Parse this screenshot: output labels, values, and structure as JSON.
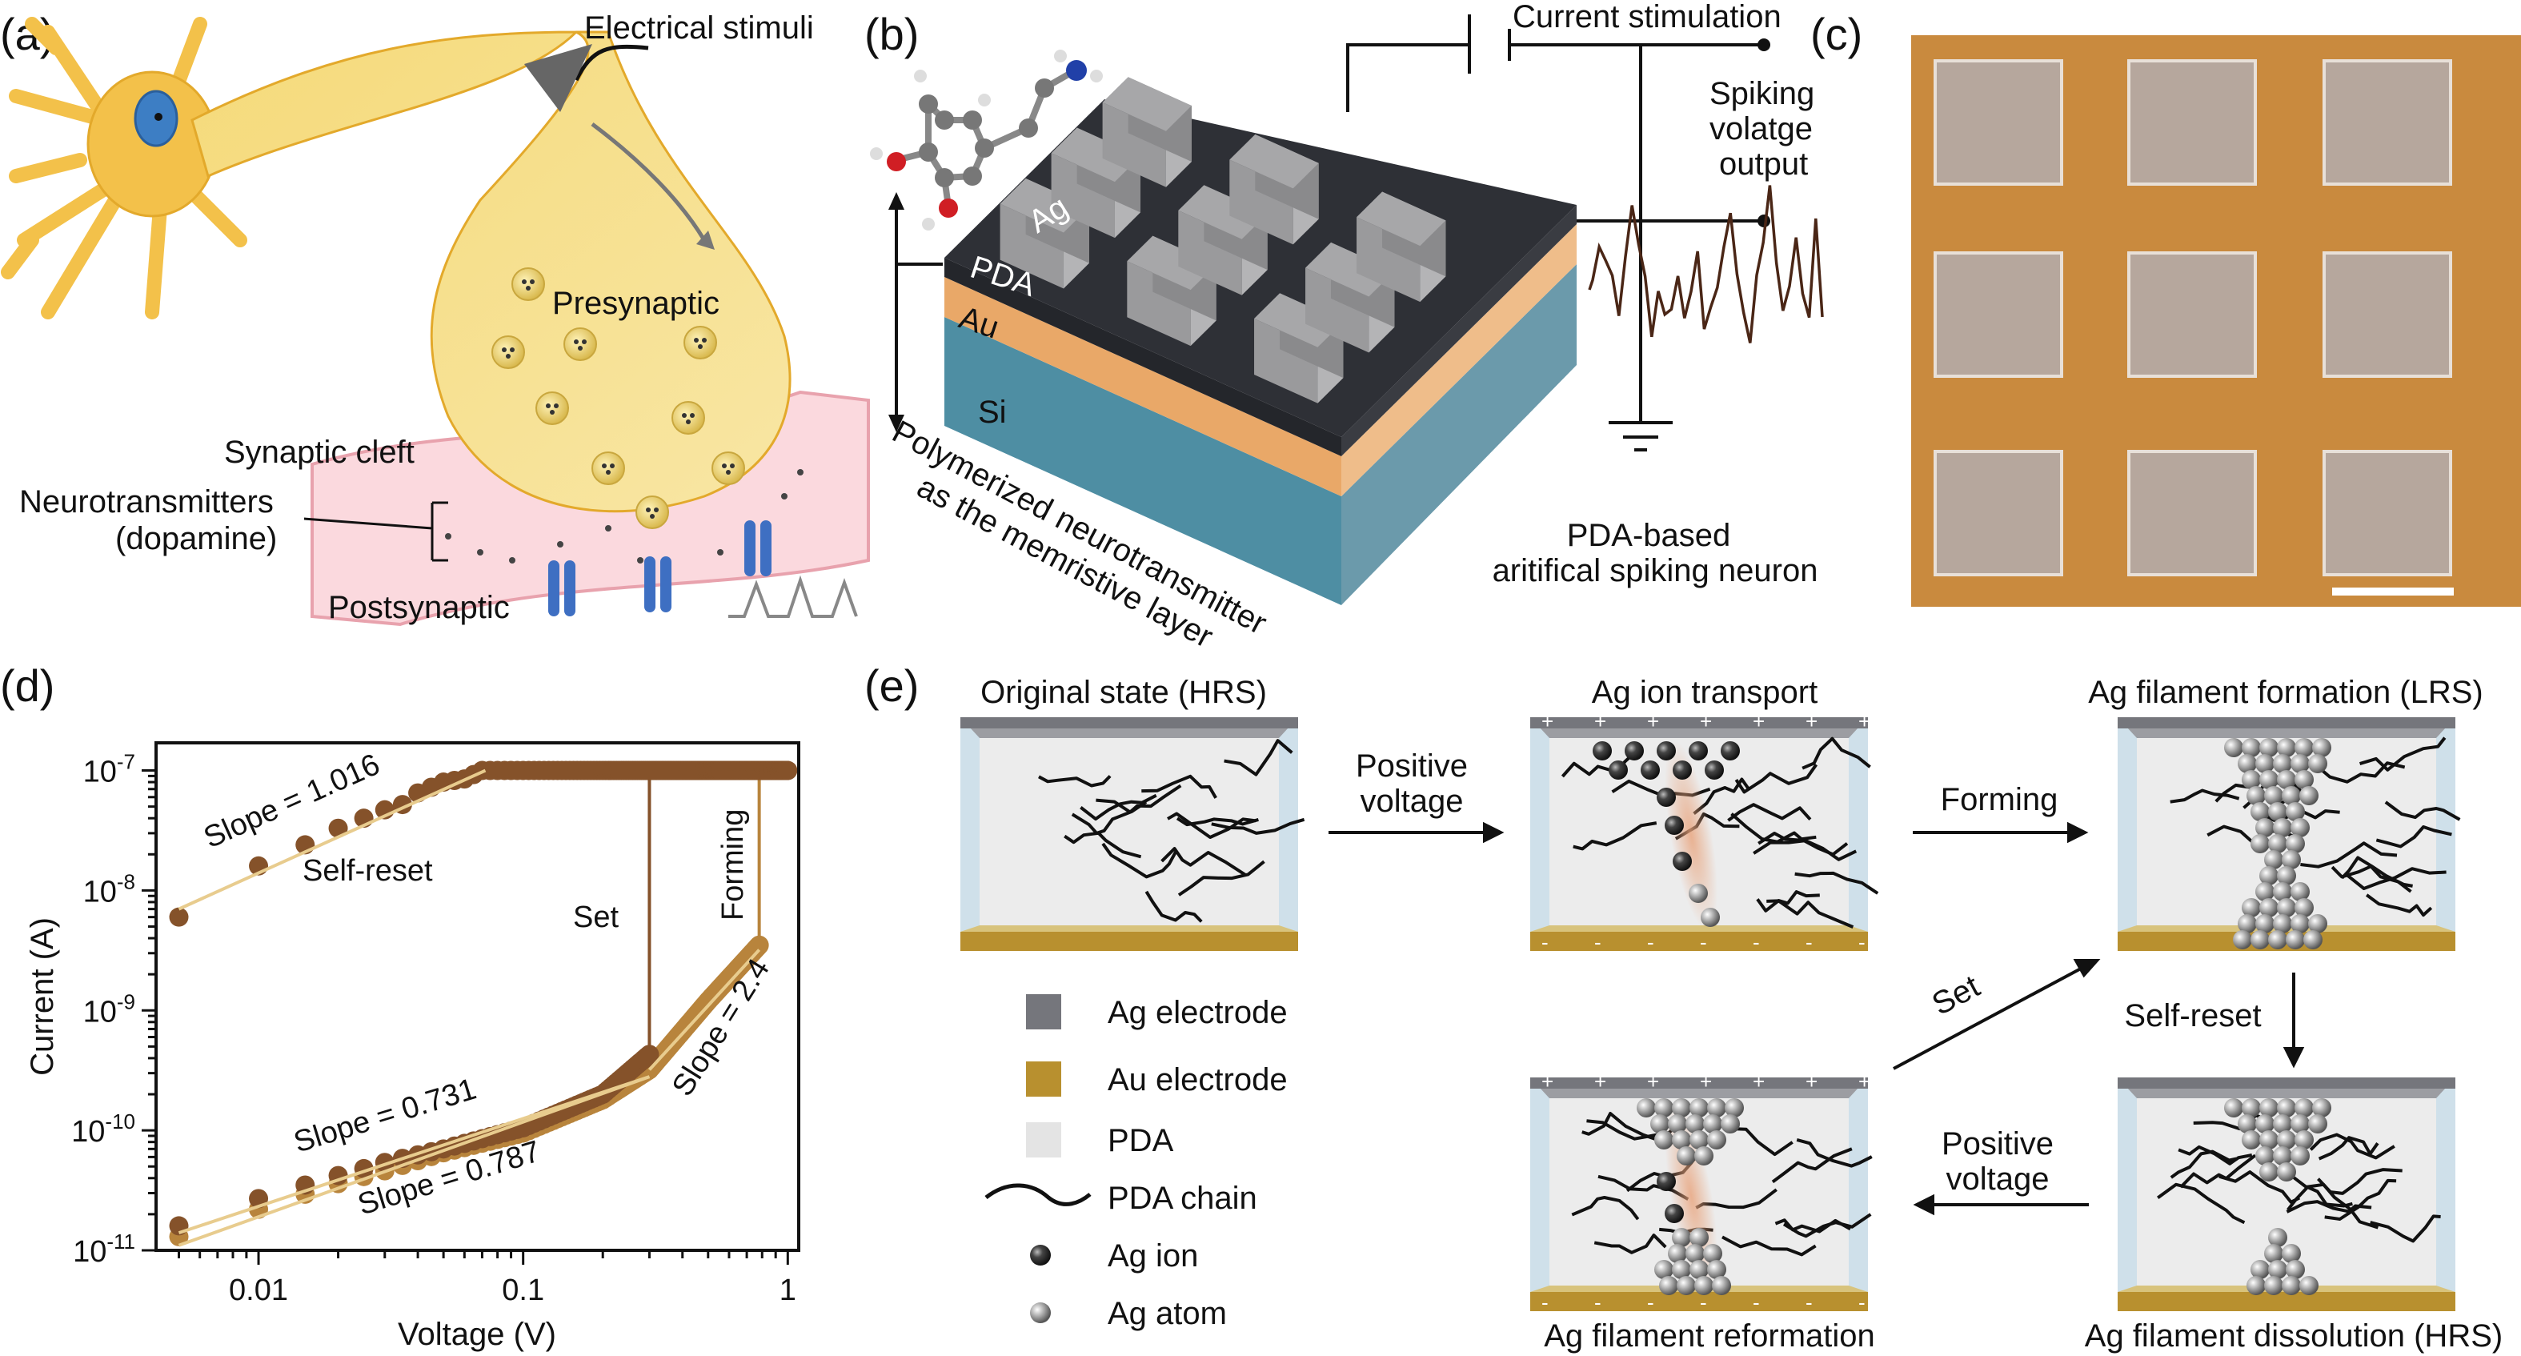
{
  "panels": {
    "a": {
      "label": "(a)",
      "electrical_stimuli": "Electrical stimuli",
      "presynaptic": "Presynaptic",
      "synaptic_cleft": "Synaptic cleft",
      "neurotransmitters": "Neurotransmitters",
      "dopamine": "(dopamine)",
      "postsynaptic": "Postsynaptic"
    },
    "b": {
      "label": "(b)",
      "current_stimulation": "Current stimulation",
      "spiking_lines": [
        "Spiking",
        "volatge",
        "output"
      ],
      "layer_ag": "Ag",
      "layer_pda": "PDA",
      "layer_au": "Au",
      "layer_si": "Si",
      "caption_line1": "Polymerized neurotransmitter",
      "caption_line2": "as the memristive layer",
      "neuron_line1": "PDA-based",
      "neuron_line2": "aritifical spiking neuron",
      "colors": {
        "pda": "#2e3036",
        "au": "#e9a868",
        "si": "#4e8ea3",
        "ag": "#a7a7a9"
      }
    },
    "c": {
      "label": "(c)",
      "colors": {
        "substrate": "#c98a3e",
        "pad": "#b6a79d"
      }
    },
    "e": {
      "label": "(e)",
      "states": {
        "original": "Original state (HRS)",
        "transport": "Ag ion transport",
        "formation": "Ag filament formation (LRS)",
        "dissolution": "Ag filament dissolution (HRS)",
        "reformation": "Ag filament reformation"
      },
      "arrows": {
        "positive1": [
          "Positive",
          "voltage"
        ],
        "forming": "Forming",
        "self_reset": "Self-reset",
        "positive2": [
          "Positive",
          "voltage"
        ],
        "set": "Set"
      },
      "legend": [
        {
          "icon": "ag-electrode-swatch",
          "label": "Ag electrode",
          "color": "#75767c"
        },
        {
          "icon": "au-electrode-swatch",
          "label": "Au electrode",
          "color": "#b8902f"
        },
        {
          "icon": "pda-swatch",
          "label": "PDA",
          "color": "#e4e4e4"
        },
        {
          "icon": "pda-chain-line",
          "label": "PDA chain"
        },
        {
          "icon": "ag-ion-sphere",
          "label": "Ag ion",
          "color": "#333333"
        },
        {
          "icon": "ag-atom-sphere",
          "label": "Ag atom",
          "color": "#9a9a9a"
        }
      ],
      "plus": "+",
      "minus": "-"
    }
  },
  "chart_data": {
    "panel_label": "(d)",
    "type": "scatter",
    "xlabel": "Voltage (V)",
    "ylabel": "Current (A)",
    "x_scale": "log",
    "y_scale": "log",
    "xlim": [
      0.0041,
      1.1
    ],
    "ylim": [
      1e-11,
      1.7e-07
    ],
    "x_ticks": [
      {
        "value": 0.01,
        "label": "0.01"
      },
      {
        "value": 0.1,
        "label": "0.1"
      },
      {
        "value": 1,
        "label": "1"
      }
    ],
    "y_ticks": [
      {
        "value": 1e-07,
        "base": "10",
        "exp": "-7"
      },
      {
        "value": 1e-08,
        "base": "10",
        "exp": "-8"
      },
      {
        "value": 1e-09,
        "base": "10",
        "exp": "-9"
      },
      {
        "value": 1e-10,
        "base": "10",
        "exp": "-10"
      },
      {
        "value": 1e-11,
        "base": "10",
        "exp": "-11"
      }
    ],
    "grid": false,
    "compliance_current": 1e-07,
    "series": [
      {
        "color": "#b8843c",
        "anchors": [
          [
            0.005,
            1.3e-11
          ],
          [
            0.01,
            2.2e-11
          ],
          [
            0.02,
            3.6e-11
          ],
          [
            0.03,
            4.6e-11
          ],
          [
            0.05,
            6.5e-11
          ],
          [
            0.1,
            9.5e-11
          ],
          [
            0.2,
            1.8e-10
          ],
          [
            0.3,
            3.2e-10
          ],
          [
            0.5,
            1.2e-09
          ],
          [
            0.78,
            3.5e-09
          ]
        ],
        "jump_at": 0.78
      },
      {
        "color": "#85522a",
        "anchors": [
          [
            0.005,
            1.6e-11
          ],
          [
            0.01,
            2.7e-11
          ],
          [
            0.015,
            3.5e-11
          ],
          [
            0.02,
            4.2e-11
          ],
          [
            0.025,
            4.8e-11
          ],
          [
            0.03,
            5.4e-11
          ],
          [
            0.05,
            7e-11
          ],
          [
            0.1,
            1.05e-10
          ],
          [
            0.2,
            2e-10
          ],
          [
            0.3,
            4.3e-10
          ]
        ],
        "jump_at": 0.3
      },
      {
        "color": "#85522a",
        "anchors": [
          [
            0.005,
            6e-09
          ],
          [
            0.01,
            1.6e-08
          ],
          [
            0.015,
            2.4e-08
          ],
          [
            0.02,
            3.3e-08
          ],
          [
            0.025,
            4e-08
          ],
          [
            0.03,
            4.7e-08
          ],
          [
            0.035,
            5.2e-08
          ],
          [
            0.04,
            6.5e-08
          ],
          [
            0.05,
            8e-08
          ],
          [
            0.06,
            8.5e-08
          ],
          [
            0.07,
            1e-07
          ],
          [
            1.0,
            1e-07
          ]
        ]
      }
    ],
    "fits": [
      {
        "label": "Slope = 1.016",
        "from": [
          0.005,
          7e-09
        ],
        "to": [
          0.072,
          1e-07
        ]
      },
      {
        "label": "Slope = 0.731",
        "from": [
          0.005,
          1.4e-11
        ],
        "to": [
          0.3,
          2.8e-10
        ]
      },
      {
        "label": "Slope = 0.787",
        "from": [
          0.005,
          1.1e-11
        ],
        "to": [
          0.3,
          2.8e-10
        ]
      },
      {
        "label": "Slope = 2.4",
        "from": [
          0.3,
          3.2e-10
        ],
        "to": [
          0.78,
          3.2e-09
        ]
      }
    ],
    "annotations": {
      "self_reset": "Self-reset",
      "set": "Set",
      "forming": "Forming"
    },
    "fit_color": "#e8cc8e"
  }
}
